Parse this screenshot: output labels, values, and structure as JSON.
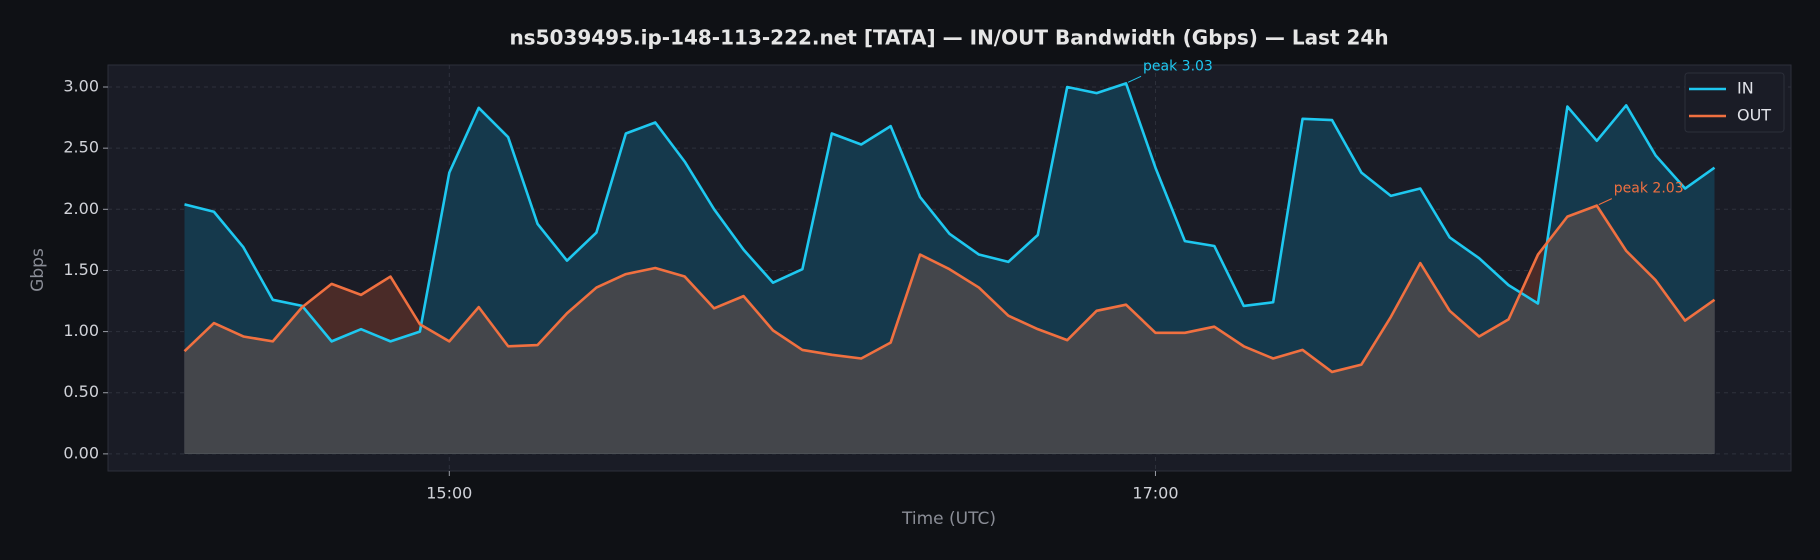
{
  "chart_data": {
    "type": "line",
    "title": "ns5039495.ip-148-113-222.net [TATA] — IN/OUT Bandwidth (Gbps) — Last 24h",
    "xlabel": "Time (UTC)",
    "ylabel": "Gbps",
    "x": [
      "14:15",
      "14:20",
      "14:25",
      "14:30",
      "14:35",
      "14:40",
      "14:45",
      "14:50",
      "14:55",
      "15:00",
      "15:05",
      "15:10",
      "15:15",
      "15:20",
      "15:25",
      "15:30",
      "15:35",
      "15:40",
      "15:45",
      "15:50",
      "15:55",
      "16:00",
      "16:05",
      "16:10",
      "16:15",
      "16:20",
      "16:25",
      "16:30",
      "16:35",
      "16:40",
      "16:45",
      "16:50",
      "16:55",
      "17:00",
      "17:05",
      "17:10",
      "17:15",
      "17:20",
      "17:25",
      "17:30",
      "17:35",
      "17:40",
      "17:45",
      "17:50",
      "17:55",
      "18:00",
      "18:05",
      "18:10",
      "18:15",
      "18:20",
      "18:25",
      "18:30",
      "18:35"
    ],
    "series": [
      {
        "name": "IN",
        "color": "#1ec8f0",
        "fill": "#15394c",
        "values": [
          2.04,
          1.98,
          1.69,
          1.26,
          1.21,
          0.92,
          1.02,
          0.92,
          1.0,
          2.3,
          2.83,
          2.59,
          1.88,
          1.58,
          1.81,
          2.62,
          2.71,
          2.39,
          2.0,
          1.67,
          1.4,
          1.51,
          2.62,
          2.53,
          2.68,
          2.1,
          1.8,
          1.63,
          1.57,
          1.79,
          3.0,
          2.95,
          3.03,
          2.34,
          1.74,
          1.7,
          1.21,
          1.24,
          2.74,
          2.73,
          2.3,
          2.11,
          2.17,
          1.77,
          1.6,
          1.38,
          1.23,
          2.84,
          2.56,
          2.85,
          2.44,
          2.17,
          2.34
        ]
      },
      {
        "name": "OUT",
        "color": "#f07040",
        "fill": "#4a2b28",
        "values": [
          0.84,
          1.07,
          0.96,
          0.92,
          1.2,
          1.39,
          1.3,
          1.45,
          1.06,
          0.92,
          1.2,
          0.88,
          0.89,
          1.15,
          1.36,
          1.47,
          1.52,
          1.45,
          1.19,
          1.29,
          1.01,
          0.85,
          0.81,
          0.78,
          0.91,
          1.63,
          1.51,
          1.36,
          1.13,
          1.02,
          0.93,
          1.17,
          1.22,
          0.99,
          0.99,
          1.04,
          0.88,
          0.78,
          0.85,
          0.67,
          0.73,
          1.12,
          1.56,
          1.17,
          0.96,
          1.1,
          1.63,
          1.94,
          2.03,
          1.66,
          1.42,
          1.09,
          1.26
        ]
      }
    ],
    "overlap_fill": "#44464b",
    "annotations": [
      {
        "text": "peak 3.03"
      },
      {
        "text": "peak 2.03"
      }
    ],
    "xlim": [
      "14:02",
      "18:48"
    ],
    "xticks": [
      "15:00",
      "17:00"
    ],
    "ylim": [
      -0.14,
      3.18
    ],
    "yticks": [
      {
        "value": 0,
        "label": "0.00"
      },
      {
        "value": 0.5,
        "label": "0.50"
      },
      {
        "value": 1,
        "label": "1.00"
      },
      {
        "value": 1.5,
        "label": "1.50"
      },
      {
        "value": 2,
        "label": "2.00"
      },
      {
        "value": 2.5,
        "label": "2.50"
      },
      {
        "value": 3,
        "label": "3.00"
      }
    ],
    "grid": true,
    "legend": "upper right"
  }
}
